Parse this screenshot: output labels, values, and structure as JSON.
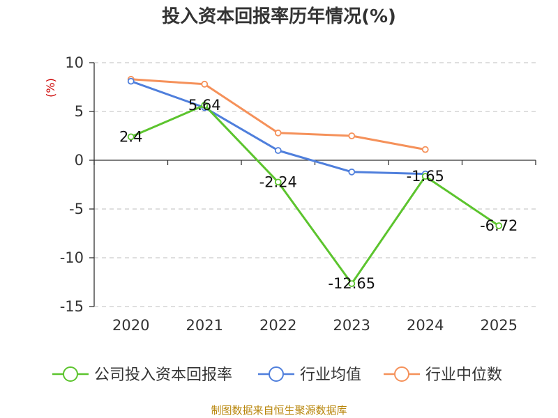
{
  "chart_data": {
    "type": "line",
    "title": "投入资本回报率历年情况(%)",
    "ylabel": "(%)",
    "xlabel": "",
    "categories": [
      "2020",
      "2021",
      "2022",
      "2023",
      "2024",
      "2025"
    ],
    "ylim": [
      -15,
      10
    ],
    "yticks": [
      10,
      5,
      0,
      -5,
      -10,
      -15
    ],
    "grid": true,
    "legend_position": "bottom",
    "series": [
      {
        "name": "公司投入资本回报率",
        "color": "#5cc42e",
        "values": [
          2.4,
          5.64,
          -2.24,
          -12.65,
          -1.65,
          -6.72
        ],
        "labels": [
          "2.4",
          "5.64",
          "-2.24",
          "-12.65",
          "-1.65",
          "-6.72"
        ]
      },
      {
        "name": "行业均值",
        "color": "#4f7fdc",
        "values": [
          8.1,
          5.4,
          1.0,
          -1.2,
          -1.4,
          null
        ]
      },
      {
        "name": "行业中位数",
        "color": "#f5915a",
        "values": [
          8.3,
          7.8,
          2.8,
          2.5,
          1.1,
          null
        ]
      }
    ]
  },
  "source": "制图数据来自恒生聚源数据库"
}
